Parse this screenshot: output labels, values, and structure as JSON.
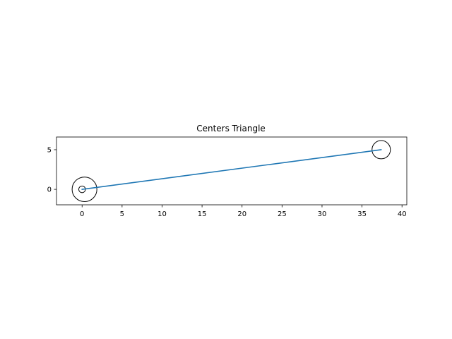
{
  "chart_data": {
    "type": "line",
    "title": "Centers Triangle",
    "xlabel": "",
    "ylabel": "",
    "xlim": [
      -3.2,
      40.6
    ],
    "ylim": [
      -1.95,
      6.6
    ],
    "xticks": [
      0,
      5,
      10,
      15,
      20,
      25,
      30,
      35,
      40
    ],
    "yticks": [
      0,
      5
    ],
    "grid": false,
    "colors": {
      "line": "#1f77b4",
      "circle": "#000000",
      "axes": "#000000"
    },
    "series": [
      {
        "x": [
          0,
          37.4,
          0
        ],
        "y": [
          0,
          5,
          0
        ],
        "color": "#1f77b4"
      }
    ],
    "circles": [
      {
        "cx": 0,
        "cy": 0,
        "r": 0.42
      },
      {
        "cx": 0.3,
        "cy": 0,
        "r": 1.55
      },
      {
        "cx": 37.4,
        "cy": 5,
        "r": 1.15
      }
    ]
  }
}
